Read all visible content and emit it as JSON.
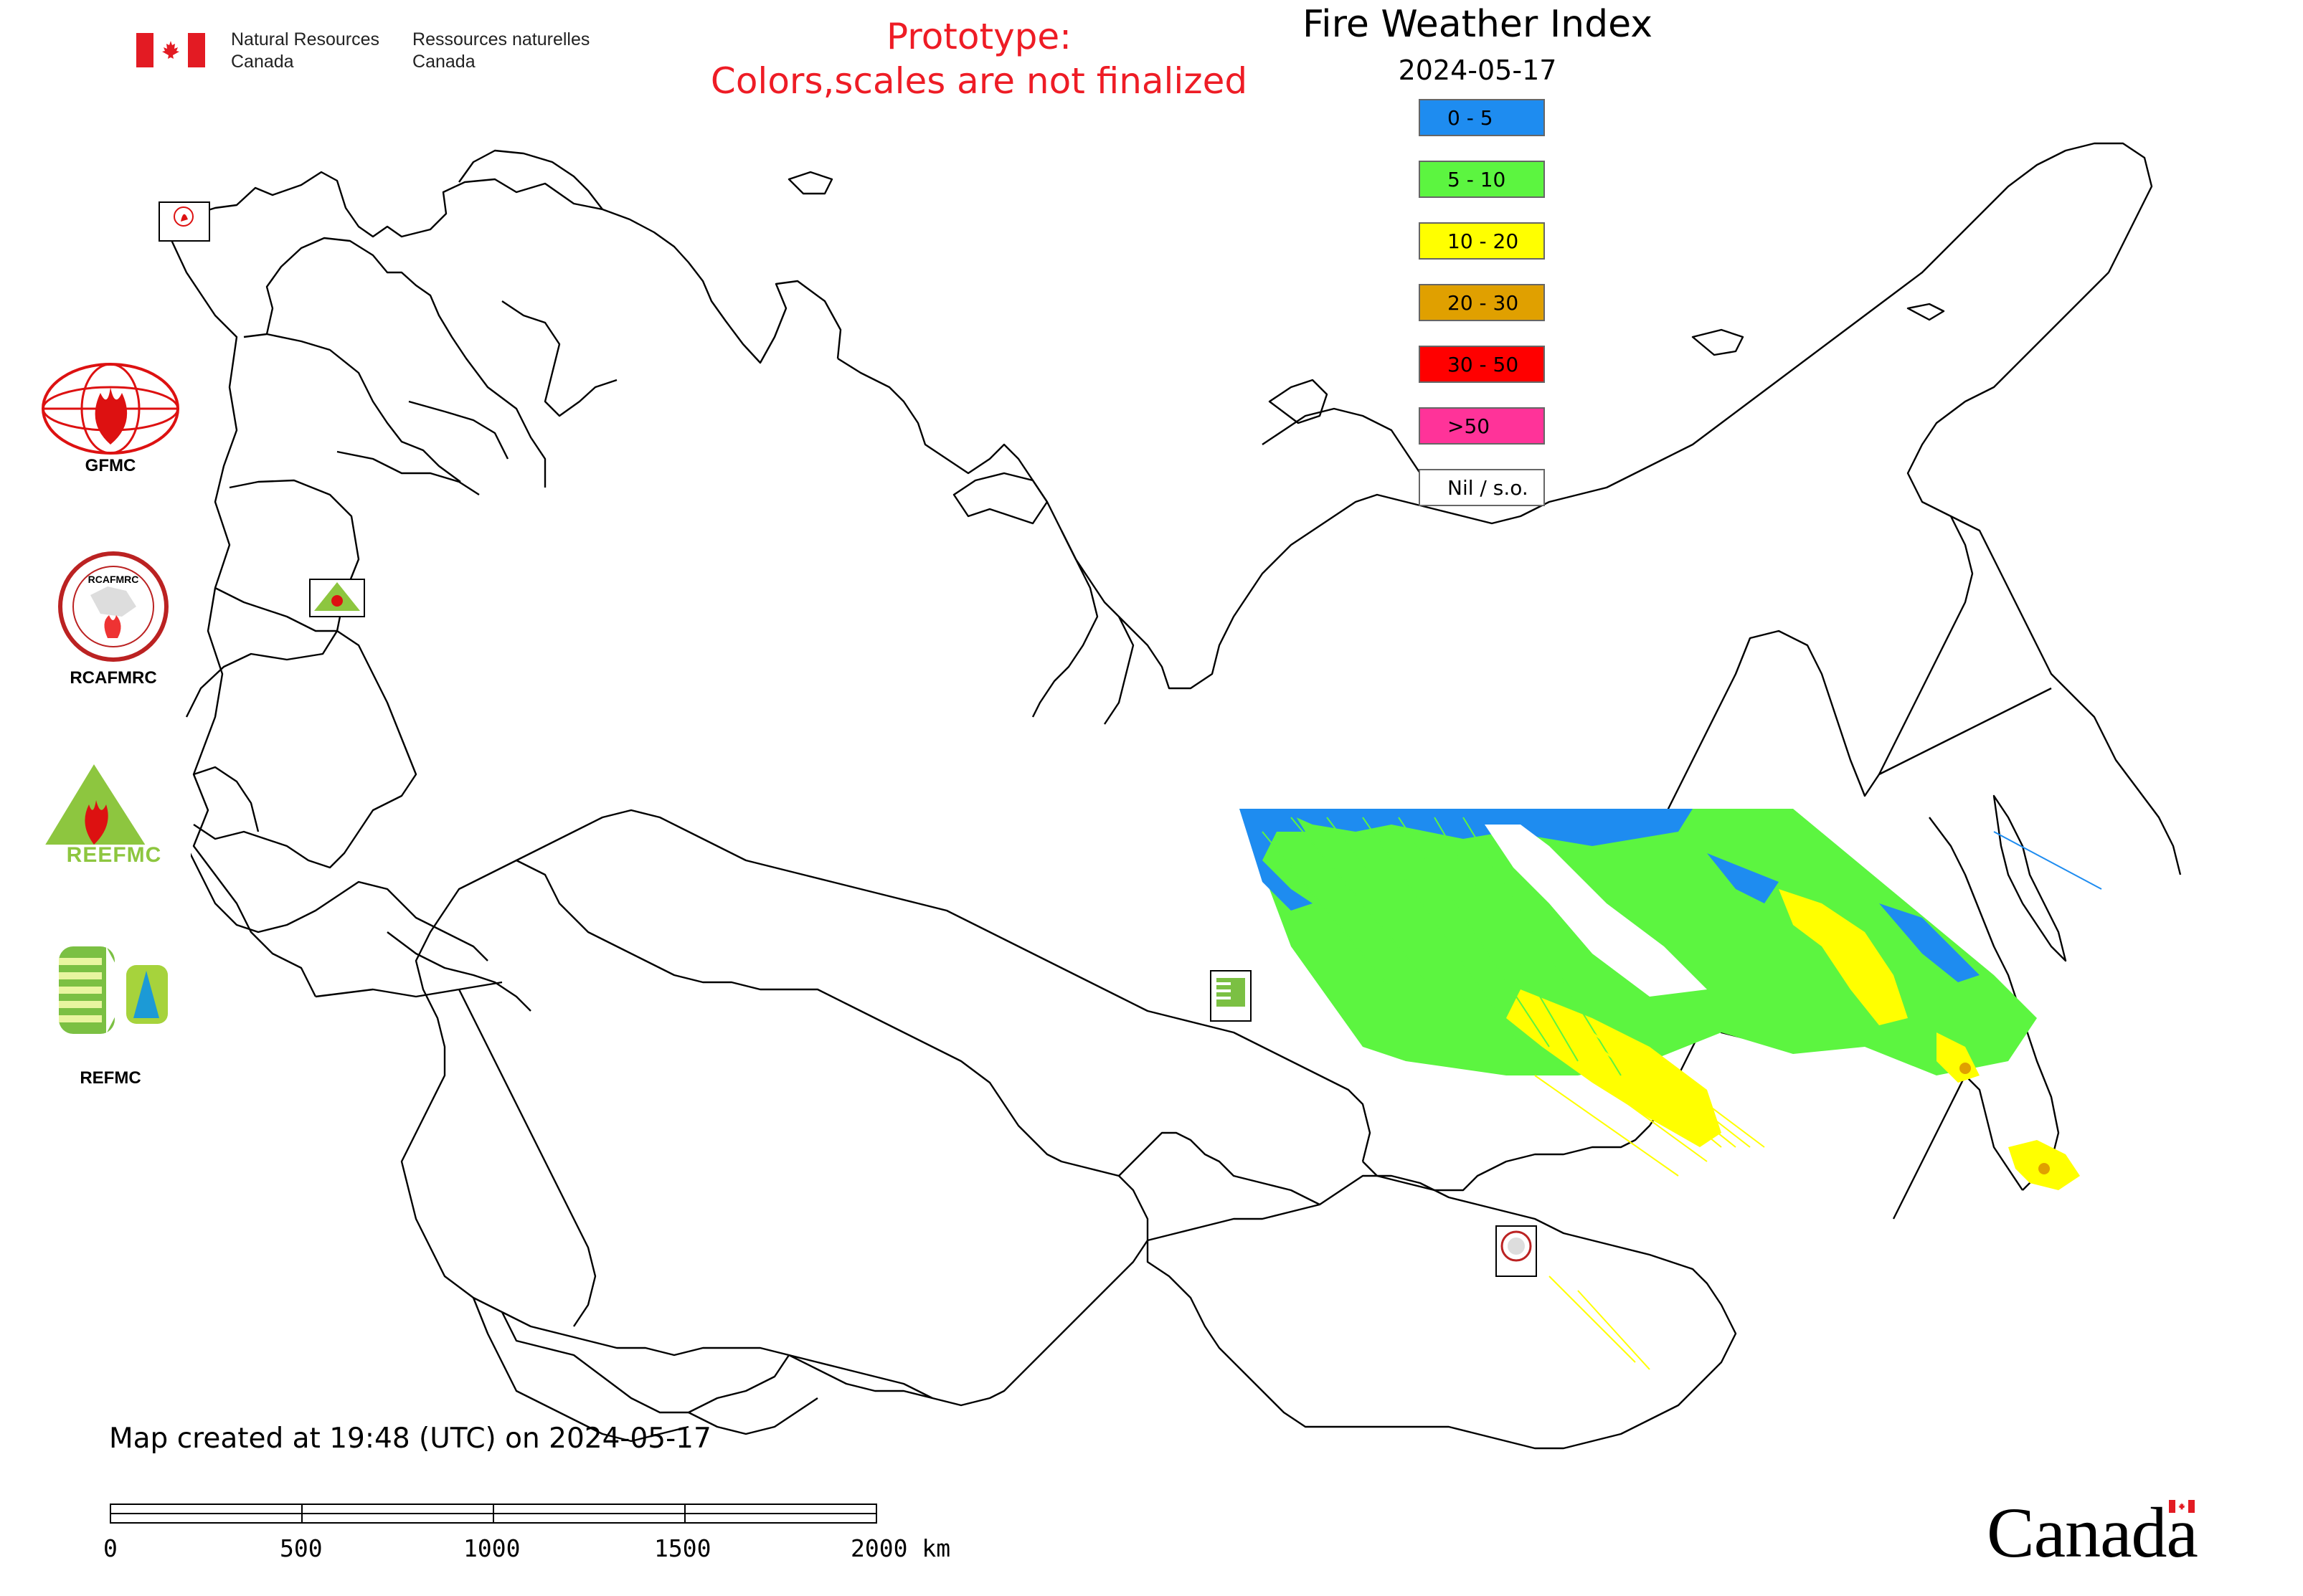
{
  "header": {
    "department_en_line1": "Natural Resources",
    "department_en_line2": "Canada",
    "department_fr_line1": "Ressources naturelles",
    "department_fr_line2": "Canada",
    "notice_line1": "Prototype:",
    "notice_line2": "Colors,scales are not finalized",
    "notice_color": "#ee1c25"
  },
  "legend": {
    "title": "Fire Weather Index",
    "date": "2024-05-17",
    "classes": [
      {
        "label": "0 - 5",
        "color": "#1e8cf0"
      },
      {
        "label": "5 - 10",
        "color": "#5cf540"
      },
      {
        "label": "10 - 20",
        "color": "#ffff00"
      },
      {
        "label": "20 - 30",
        "color": "#e0a000"
      },
      {
        "label": "30 - 50",
        "color": "#ff0000"
      },
      {
        "label": ">50",
        "color": "#ff3399"
      },
      {
        "label": "Nil / s.o.",
        "color": "#ffffff"
      }
    ]
  },
  "footer": {
    "map_created": "Map created at 19:48 (UTC) on 2024-05-17",
    "wordmark": "Canada"
  },
  "scale_bar": {
    "ticks": [
      "0",
      "500",
      "1000",
      "1500",
      "2000 km"
    ]
  },
  "logos": {
    "gfmc": "GFMC",
    "rcafmrc": "RCAFMRC",
    "reefmc": "REEFMC",
    "refmc": "REFMC",
    "rcafmrc_ring_text": "RCAFMRC",
    "reefmc_text": "REEFMC"
  },
  "map_markers": [
    {
      "name": "GFMC",
      "icon": "gfmc-logo-icon"
    },
    {
      "name": "REEFMC",
      "icon": "reefmc-logo-icon"
    },
    {
      "name": "REFMC",
      "icon": "refmc-logo-icon"
    },
    {
      "name": "RCAFMRC",
      "icon": "rcafmrc-logo-icon"
    }
  ]
}
